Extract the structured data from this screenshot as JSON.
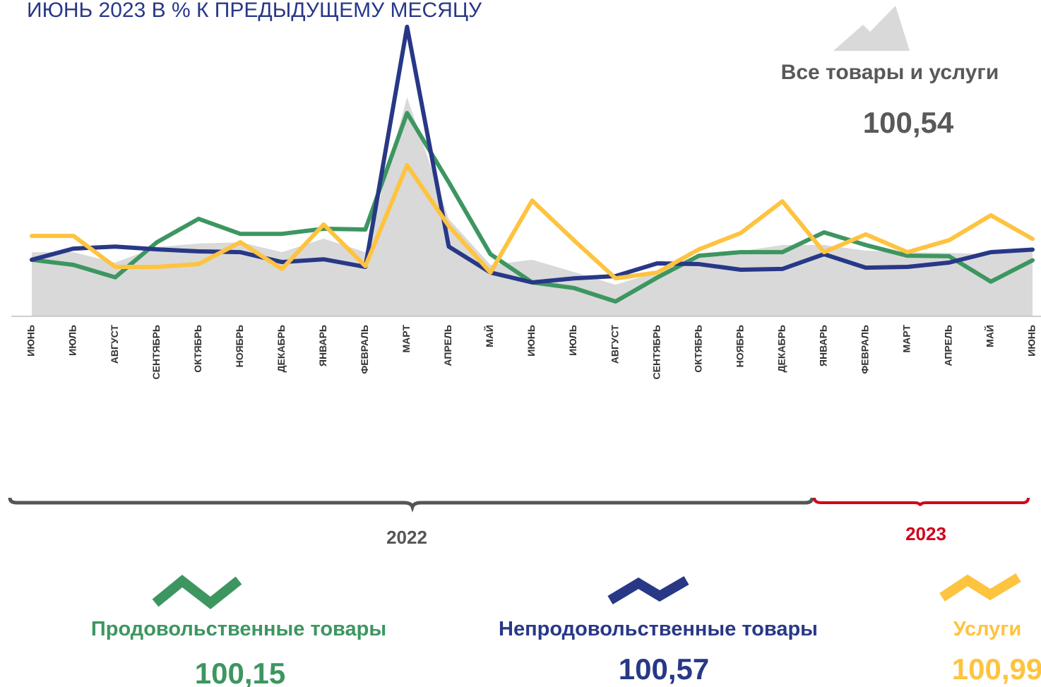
{
  "chart_data": {
    "type": "line",
    "title": "ИЮНЬ 2023  В % К ПРЕДЫДУЩЕМУ МЕСЯЦУ",
    "categories": [
      "ИЮНЬ",
      "ИЮЛЬ",
      "АВГУСТ",
      "СЕНТЯБРЬ",
      "ОКТЯБРЬ",
      "НОЯБРЬ",
      "ДЕКАБРЬ",
      "ЯНВАРЬ",
      "ФЕВРАЛЬ",
      "МАРТ",
      "АПРЕЛЬ",
      "МАЙ",
      "ИЮНЬ",
      "ИЮЛЬ",
      "АВГУСТ",
      "СЕНТЯБРЬ",
      "ОКТЯБРЬ",
      "НОЯБРЬ",
      "ДЕКАБРЬ",
      "ЯНВАРЬ",
      "ФЕВРАЛЬ",
      "МАРТ",
      "АПРЕЛЬ",
      "МАЙ",
      "ИЮНЬ"
    ],
    "annotations": [
      "2022",
      "2023"
    ],
    "series": [
      {
        "name": "Все товары и услуги",
        "color": "#d9d9d9",
        "area": true,
        "values": [
          100.47,
          100.47,
          100.06,
          100.67,
          100.81,
          100.86,
          100.47,
          101.0,
          100.47,
          106.56,
          101.78,
          99.97,
          100.17,
          99.69,
          99.19,
          99.69,
          100.39,
          100.5,
          100.75,
          100.75,
          100.53,
          100.47,
          100.44,
          100.39,
          100.54
        ],
        "value_labels": [
          null,
          null,
          null,
          null,
          null,
          null,
          null,
          null,
          null,
          null,
          null,
          null,
          null,
          null,
          null,
          null,
          null,
          null,
          null,
          null,
          null,
          null,
          null,
          null,
          "100,54"
        ]
      },
      {
        "name": "Продовольственные товары",
        "color": "#3d9660",
        "values": [
          100.17,
          99.97,
          99.48,
          100.86,
          101.78,
          101.19,
          101.19,
          101.39,
          101.36,
          105.94,
          103.22,
          100.39,
          99.28,
          99.06,
          98.53,
          99.47,
          100.33,
          100.47,
          100.47,
          101.25,
          100.75,
          100.33,
          100.31,
          99.31,
          100.15
        ],
        "value_labels": [
          null,
          null,
          null,
          null,
          null,
          null,
          null,
          null,
          null,
          null,
          null,
          null,
          null,
          null,
          null,
          null,
          null,
          null,
          null,
          null,
          null,
          null,
          null,
          null,
          "100,15"
        ]
      },
      {
        "name": "Непродовольственные товары",
        "color": "#283887",
        "values": [
          100.17,
          100.61,
          100.69,
          100.58,
          100.5,
          100.47,
          100.08,
          100.19,
          99.89,
          109.33,
          100.69,
          99.67,
          99.28,
          99.44,
          99.53,
          100.03,
          100.0,
          99.78,
          99.81,
          100.39,
          99.86,
          99.89,
          100.06,
          100.47,
          100.57
        ],
        "value_labels": [
          null,
          null,
          null,
          null,
          null,
          null,
          null,
          null,
          null,
          null,
          null,
          null,
          null,
          null,
          null,
          null,
          null,
          null,
          null,
          null,
          null,
          null,
          null,
          null,
          "100,57"
        ]
      },
      {
        "name": "Услуги",
        "color": "#fec33f",
        "values": [
          101.11,
          101.11,
          99.89,
          99.89,
          100.0,
          100.86,
          99.81,
          101.56,
          99.92,
          103.89,
          101.5,
          99.67,
          102.5,
          100.94,
          99.44,
          99.67,
          100.58,
          101.22,
          102.47,
          100.47,
          101.17,
          100.47,
          100.94,
          101.92,
          100.99
        ],
        "value_labels": [
          null,
          null,
          null,
          null,
          null,
          null,
          null,
          null,
          null,
          null,
          null,
          null,
          null,
          null,
          null,
          null,
          null,
          null,
          null,
          null,
          null,
          null,
          null,
          null,
          "100,99"
        ]
      }
    ]
  }
}
